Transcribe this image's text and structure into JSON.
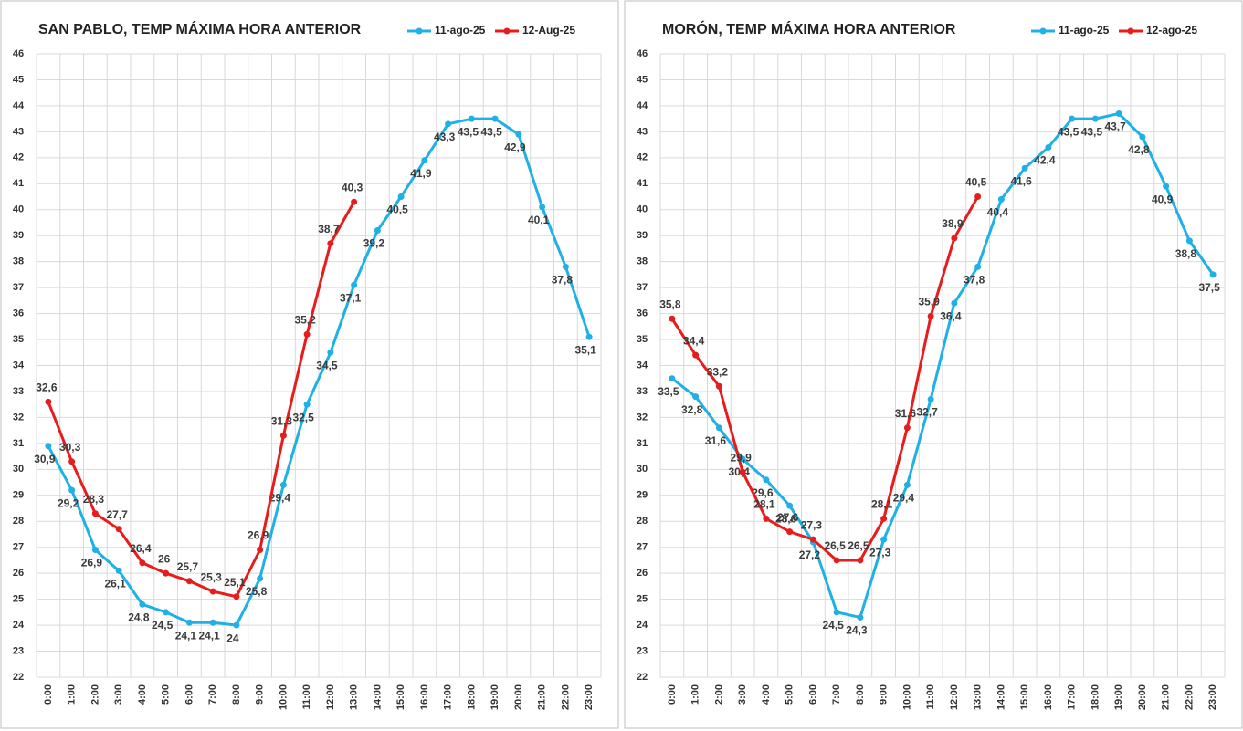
{
  "chart_data": [
    {
      "type": "line",
      "title": "SAN PABLO, TEMP MÁXIMA HORA ANTERIOR",
      "categories": [
        "0:00",
        "1:00",
        "2:00",
        "3:00",
        "4:00",
        "5:00",
        "6:00",
        "7:00",
        "8:00",
        "9:00",
        "10:00",
        "11:00",
        "12:00",
        "13:00",
        "14:00",
        "15:00",
        "16:00",
        "17:00",
        "18:00",
        "19:00",
        "20:00",
        "21:00",
        "22:00",
        "23:00"
      ],
      "ylim": [
        22,
        46
      ],
      "yticks": [
        22,
        23,
        24,
        25,
        26,
        27,
        28,
        29,
        30,
        31,
        32,
        33,
        34,
        35,
        36,
        37,
        38,
        39,
        40,
        41,
        42,
        43,
        44,
        45,
        46
      ],
      "grid": true,
      "legend": "top-right",
      "series": [
        {
          "name": "11-ago-25",
          "color": "#1fb0e6",
          "values": [
            30.9,
            29.2,
            26.9,
            26.1,
            24.8,
            24.5,
            24.1,
            24.1,
            24,
            25.8,
            29.4,
            32.5,
            34.5,
            37.1,
            39.2,
            40.5,
            41.9,
            43.3,
            43.5,
            43.5,
            42.9,
            40.1,
            37.8,
            35.1
          ],
          "value_labels": [
            "30,9",
            "29,2",
            "26,9",
            "26,1",
            "24,8",
            "24,5",
            "24,1",
            "24,1",
            "24",
            "25,8",
            "29,4",
            "32,5",
            "34,5",
            "37,1",
            "39,2",
            "40,5",
            "41,9",
            "43,3",
            "43,5",
            "43,5",
            "42,9",
            "40,1",
            "37,8",
            "35,1"
          ]
        },
        {
          "name": "12-Aug-25",
          "color": "#e81c1c",
          "values": [
            32.6,
            30.3,
            28.3,
            27.7,
            26.4,
            26,
            25.7,
            25.3,
            25.1,
            26.9,
            31.3,
            35.2,
            38.7,
            40.3,
            null,
            null,
            null,
            null,
            null,
            null,
            null,
            null,
            null,
            null
          ],
          "value_labels": [
            "32,6",
            "30,3",
            "28,3",
            "27,7",
            "26,4",
            "26",
            "25,7",
            "25,3",
            "25,1",
            "26,9",
            "31,3",
            "35,2",
            "38,7",
            "40,3",
            null,
            null,
            null,
            null,
            null,
            null,
            null,
            null,
            null,
            null
          ]
        }
      ]
    },
    {
      "type": "line",
      "title": "MORÓN, TEMP MÁXIMA HORA ANTERIOR",
      "categories": [
        "0:00",
        "1:00",
        "2:00",
        "3:00",
        "4:00",
        "5:00",
        "6:00",
        "7:00",
        "8:00",
        "9:00",
        "10:00",
        "11:00",
        "12:00",
        "13:00",
        "14:00",
        "15:00",
        "16:00",
        "17:00",
        "18:00",
        "19:00",
        "20:00",
        "21:00",
        "22:00",
        "23:00"
      ],
      "ylim": [
        22,
        46
      ],
      "yticks": [
        22,
        23,
        24,
        25,
        26,
        27,
        28,
        29,
        30,
        31,
        32,
        33,
        34,
        35,
        36,
        37,
        38,
        39,
        40,
        41,
        42,
        43,
        44,
        45,
        46
      ],
      "grid": true,
      "legend": "top-right",
      "series": [
        {
          "name": "11-ago-25",
          "color": "#1fb0e6",
          "values": [
            33.5,
            32.8,
            31.6,
            30.4,
            29.6,
            28.6,
            27.2,
            24.5,
            24.3,
            27.3,
            29.4,
            32.7,
            36.4,
            37.8,
            40.4,
            41.6,
            42.4,
            43.5,
            43.5,
            43.7,
            42.8,
            40.9,
            38.8,
            37.5
          ],
          "value_labels": [
            "33,5",
            "32,8",
            "31,6",
            "30,4",
            "29,6",
            "28,6",
            "27,2",
            "24,5",
            "24,3",
            "27,3",
            "29,4",
            "32,7",
            "36,4",
            "37,8",
            "40,4",
            "41,6",
            "42,4",
            "43,5",
            "43,5",
            "43,7",
            "42,8",
            "40,9",
            "38,8",
            "37,5"
          ]
        },
        {
          "name": "12-ago-25",
          "color": "#e81c1c",
          "values": [
            35.8,
            34.4,
            33.2,
            29.9,
            28.1,
            27.6,
            27.3,
            26.5,
            26.5,
            28.1,
            31.6,
            35.9,
            38.9,
            40.5,
            null,
            null,
            null,
            null,
            null,
            null,
            null,
            null,
            null,
            null
          ],
          "value_labels": [
            "35,8",
            "34,4",
            "33,2",
            "29,9",
            "28,1",
            "27,6",
            "27,3",
            "26,5",
            "26,5",
            "28,1",
            "31,6",
            "35,9",
            "38,9",
            "40,5",
            null,
            null,
            null,
            null,
            null,
            null,
            null,
            null,
            null,
            null
          ]
        }
      ]
    }
  ]
}
